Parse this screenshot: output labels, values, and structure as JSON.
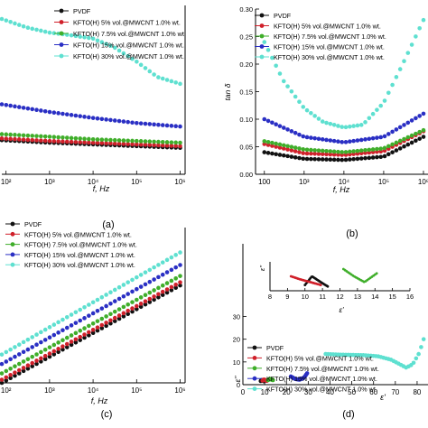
{
  "chart_data": [
    {
      "id": "a",
      "type": "scatter",
      "panel_label": "(a)",
      "xlabel": "f, Hz",
      "ylabel": "",
      "x_scale": "log",
      "xlim": [
        80,
        1300000
      ],
      "ylim": [
        0,
        10
      ],
      "x_ticks": [
        100,
        1000,
        10000,
        100000,
        1000000
      ],
      "x_tick_labels": [
        "10²",
        "10³",
        "10⁴",
        "10⁵",
        "10⁶"
      ],
      "legend": {
        "placement": "top-right",
        "entries": [
          "PVDF",
          "KFTO(H) 5% vol.@MWCNT 1.0% wt.",
          "KFTO(H) 7.5% vol.@MWCNT 1.0% wt.",
          "KFTO(H) 15% vol.@MWCNT 1.0% wt.",
          "KFTO(H) 30% vol.@MWCNT 1.0% wt."
        ]
      },
      "series": [
        {
          "name": "PVDF",
          "color": "#111111",
          "x": [
            80,
            1000,
            10000,
            100000,
            1000000
          ],
          "y": [
            2.0,
            1.85,
            1.75,
            1.65,
            1.55
          ]
        },
        {
          "name": "KFTO(H) 5% vol.@MWCNT 1.0% wt.",
          "color": "#d0202a",
          "x": [
            80,
            1000,
            10000,
            100000,
            1000000
          ],
          "y": [
            2.1,
            1.95,
            1.85,
            1.75,
            1.65
          ]
        },
        {
          "name": "KFTO(H) 7.5% vol.@MWCNT 1.0% wt.",
          "color": "#3fae2a",
          "x": [
            80,
            1000,
            10000,
            100000,
            1000000
          ],
          "y": [
            2.35,
            2.2,
            2.05,
            1.95,
            1.85
          ]
        },
        {
          "name": "KFTO(H) 15% vol.@MWCNT 1.0% wt.",
          "color": "#2a2fc4",
          "x": [
            80,
            1000,
            10000,
            100000,
            1000000
          ],
          "y": [
            4.1,
            3.65,
            3.3,
            3.0,
            2.8
          ]
        },
        {
          "name": "KFTO(H) 30% vol.@MWCNT 1.0% wt.",
          "color": "#5ee0d0",
          "x": [
            80,
            300,
            1000,
            3000,
            10000,
            30000,
            100000,
            300000,
            1000000
          ],
          "y": [
            9.1,
            8.6,
            8.3,
            8.15,
            7.95,
            7.45,
            6.6,
            5.7,
            5.3
          ]
        }
      ]
    },
    {
      "id": "b",
      "type": "scatter",
      "panel_label": "(b)",
      "xlabel": "f, Hz",
      "ylabel": "tan δ",
      "x_scale": "log",
      "xlim": [
        60,
        1300000
      ],
      "ylim": [
        0,
        0.3
      ],
      "x_ticks": [
        100,
        1000,
        10000,
        100000,
        1000000
      ],
      "x_tick_labels": [
        "100",
        "10³",
        "10⁴",
        "10⁵",
        "10⁶"
      ],
      "y_ticks": [
        0.0,
        0.05,
        0.1,
        0.15,
        0.2,
        0.25,
        0.3
      ],
      "y_tick_labels": [
        "0.00",
        "0.05",
        "0.10",
        "0.15",
        "0.20",
        "0.25",
        "0.30"
      ],
      "legend": {
        "placement": "top-left",
        "entries": [
          "PVDF",
          "KFTO(H) 5% vol.@MWCNT 1.0% wt.",
          "KFTO(H) 7.5% vol.@MWCNT 1.0% wt.",
          "KFTO(H) 15% vol.@MWCNT 1.0% wt.",
          "KFTO(H) 30% vol.@MWCNT 1.0% wt."
        ]
      },
      "series": [
        {
          "name": "PVDF",
          "color": "#111111",
          "x": [
            100,
            1000,
            10000,
            100000,
            1000000
          ],
          "y": [
            0.04,
            0.028,
            0.026,
            0.032,
            0.068
          ]
        },
        {
          "name": "KFTO(H) 5% vol.@MWCNT 1.0% wt.",
          "color": "#d0202a",
          "x": [
            100,
            1000,
            10000,
            100000,
            1000000
          ],
          "y": [
            0.055,
            0.038,
            0.035,
            0.042,
            0.078
          ]
        },
        {
          "name": "KFTO(H) 7.5% vol.@MWCNT 1.0% wt.",
          "color": "#3fae2a",
          "x": [
            100,
            1000,
            10000,
            100000,
            1000000
          ],
          "y": [
            0.06,
            0.045,
            0.04,
            0.047,
            0.08
          ]
        },
        {
          "name": "KFTO(H) 15% vol.@MWCNT 1.0% wt.",
          "color": "#2a2fc4",
          "x": [
            100,
            1000,
            10000,
            100000,
            1000000
          ],
          "y": [
            0.1,
            0.068,
            0.058,
            0.068,
            0.11
          ]
        },
        {
          "name": "KFTO(H) 30% vol.@MWCNT 1.0% wt.",
          "color": "#5ee0d0",
          "x": [
            100,
            300,
            1000,
            3000,
            10000,
            30000,
            100000,
            300000,
            1000000
          ],
          "y": [
            0.24,
            0.17,
            0.12,
            0.095,
            0.085,
            0.09,
            0.13,
            0.2,
            0.28
          ]
        }
      ]
    },
    {
      "id": "c",
      "type": "scatter",
      "panel_label": "(c)",
      "xlabel": "f, Hz",
      "ylabel": "",
      "x_scale": "log",
      "xlim": [
        80,
        1300000
      ],
      "ylim": [
        0,
        10
      ],
      "x_ticks": [
        100,
        1000,
        10000,
        100000,
        1000000
      ],
      "x_tick_labels": [
        "10²",
        "10³",
        "10⁴",
        "10⁵",
        "10⁶"
      ],
      "legend": {
        "placement": "top-left",
        "entries": [
          "PVDF",
          "KFTO(H) 5% vol.@MWCNT 1.0% wt.",
          "KFTO(H) 7.5% vol.@MWCNT 1.0% wt.",
          "KFTO(H) 15% vol.@MWCNT 1.0% wt.",
          "KFTO(H) 30% vol.@MWCNT 1.0% wt."
        ]
      },
      "series": [
        {
          "name": "PVDF",
          "color": "#111111",
          "x": [
            80,
            1000000
          ],
          "y": [
            0.0,
            6.2
          ]
        },
        {
          "name": "KFTO(H) 5% vol.@MWCNT 1.0% wt.",
          "color": "#d0202a",
          "x": [
            80,
            1000000
          ],
          "y": [
            0.2,
            6.4
          ]
        },
        {
          "name": "KFTO(H) 7.5% vol.@MWCNT 1.0% wt.",
          "color": "#3fae2a",
          "x": [
            80,
            1000000
          ],
          "y": [
            0.6,
            6.8
          ]
        },
        {
          "name": "KFTO(H) 15% vol.@MWCNT 1.0% wt.",
          "color": "#2a2fc4",
          "x": [
            80,
            1000000
          ],
          "y": [
            1.2,
            7.5
          ]
        },
        {
          "name": "KFTO(H) 30% vol.@MWCNT 1.0% wt.",
          "color": "#5ee0d0",
          "x": [
            80,
            1000000
          ],
          "y": [
            1.8,
            8.3
          ]
        }
      ]
    },
    {
      "id": "d",
      "type": "scatter",
      "panel_label": "(d)",
      "xlabel": "ε'",
      "ylabel": "ε''",
      "xlim": [
        0,
        85
      ],
      "ylim": [
        0,
        62
      ],
      "x_ticks": [
        0,
        10,
        20,
        30,
        40,
        50,
        60,
        70,
        80
      ],
      "x_tick_labels": [
        "0",
        "10",
        "20",
        "30",
        "40",
        "50",
        "60",
        "70",
        "80"
      ],
      "y_ticks": [
        0,
        10,
        20,
        30
      ],
      "y_tick_labels": [
        "0",
        "10",
        "20",
        "30"
      ],
      "legend": {
        "placement": "center-left",
        "entries": [
          "PVDF",
          "KFTO(H) 5% vol.@MWCNT 1.0% wt.",
          "KFTO(H) 7.5% vol.@MWCNT 1.0% wt.",
          "KFTO(H) 15% vol.@MWCNT 1.0% wt.",
          "KFTO(H) 30% vol.@MWCNT 1.0% wt."
        ]
      },
      "series": [
        {
          "name": "PVDF",
          "color": "#111111",
          "x": [
            8.2,
            8.6,
            9.2,
            9.8
          ],
          "y": [
            1.6,
            2.0,
            1.8,
            1.5
          ]
        },
        {
          "name": "KFTO(H) 5% vol.@MWCNT 1.0% wt.",
          "color": "#d0202a",
          "x": [
            9.0,
            9.6,
            10.3,
            11.0
          ],
          "y": [
            1.8,
            2.2,
            2.0,
            1.7
          ]
        },
        {
          "name": "KFTO(H) 7.5% vol.@MWCNT 1.0% wt.",
          "color": "#3fae2a",
          "x": [
            11.5,
            12.2,
            13.0,
            13.8
          ],
          "y": [
            2.0,
            2.5,
            2.3,
            2.0
          ]
        },
        {
          "name": "KFTO(H) 15% vol.@MWCNT 1.0% wt.",
          "color": "#2a2fc4",
          "x": [
            22,
            24,
            26,
            28,
            29.5
          ],
          "y": [
            3.6,
            2.5,
            2.2,
            3.0,
            5.0
          ]
        },
        {
          "name": "KFTO(H) 30% vol.@MWCNT 1.0% wt.",
          "color": "#5ee0d0",
          "x": [
            38,
            45,
            55,
            62,
            68,
            72,
            75,
            78,
            81,
            83
          ],
          "y": [
            13.5,
            13.2,
            13.0,
            12.5,
            11.0,
            9.0,
            7.5,
            9.0,
            14.0,
            20.0
          ]
        }
      ],
      "inset": {
        "xlabel": "ε'",
        "ylabel": "ε''",
        "xlim": [
          8,
          16
        ],
        "ylim": [
          0,
          2
        ],
        "x_ticks": [
          8,
          9,
          10,
          11,
          12,
          13,
          14,
          15,
          16
        ],
        "x_tick_labels": [
          "8",
          "9",
          "10",
          "11",
          "12",
          "13",
          "14",
          "15",
          "16"
        ],
        "series": [
          {
            "name": "PVDF",
            "color": "#111111",
            "x": [
              10.0,
              10.4,
              10.9,
              11.3
            ],
            "y": [
              0.4,
              1.0,
              0.6,
              0.3
            ]
          },
          {
            "name": "KFTO(H) 5% vol.@MWCNT 1.0% wt.",
            "color": "#d0202a",
            "x": [
              9.2,
              9.7,
              10.3,
              10.9
            ],
            "y": [
              1.0,
              0.8,
              0.6,
              0.4
            ]
          },
          {
            "name": "KFTO(H) 7.5% vol.@MWCNT 1.0% wt.",
            "color": "#3fae2a",
            "x": [
              12.2,
              12.8,
              13.4,
              14.1
            ],
            "y": [
              1.5,
              1.0,
              0.6,
              1.2
            ]
          }
        ]
      }
    }
  ]
}
